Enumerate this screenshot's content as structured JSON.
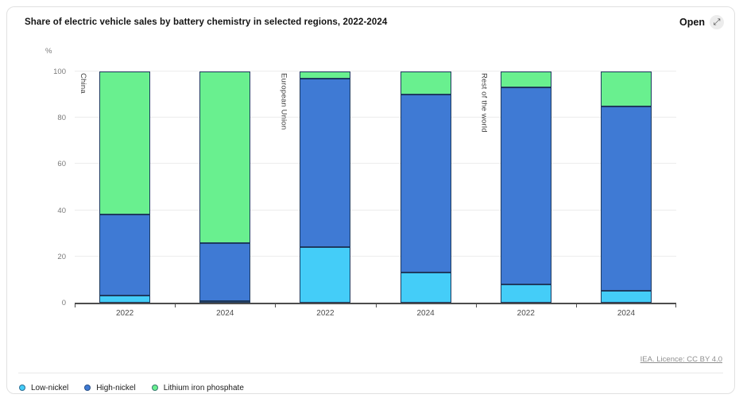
{
  "card": {
    "title": "Share of electric vehicle sales by battery chemistry in selected regions, 2022-2024",
    "open_button": {
      "label": "Open",
      "icon": "expand-diagonal-arrow"
    },
    "license_link": "IEA. Licence: CC BY 4.0"
  },
  "chart_data": {
    "type": "bar",
    "stacked": true,
    "title": "Share of electric vehicle sales by battery chemistry in selected regions, 2022-2024",
    "unit_label": "%",
    "ylim": [
      0,
      100
    ],
    "yticks": [
      0,
      20,
      40,
      60,
      80,
      100
    ],
    "grid": true,
    "legend_position": "bottom",
    "x_categories": [
      "2022",
      "2024",
      "2022",
      "2024",
      "2022",
      "2024"
    ],
    "region_labels": [
      {
        "name": "China",
        "start_index": 0,
        "span": 2
      },
      {
        "name": "European Union",
        "start_index": 2,
        "span": 2
      },
      {
        "name": "Rest of the world",
        "start_index": 4,
        "span": 2
      }
    ],
    "series": [
      {
        "name": "Low-nickel",
        "color": "#44cdf8",
        "values": [
          3,
          0.5,
          24,
          13,
          8,
          5
        ]
      },
      {
        "name": "High-nickel",
        "color": "#3f7ad4",
        "values": [
          35,
          25,
          73,
          77,
          85,
          80
        ]
      },
      {
        "name": "Lithium iron phosphate",
        "color": "#69f08f",
        "values": [
          62,
          74.5,
          3,
          10,
          7,
          15
        ]
      }
    ],
    "colors": {
      "bar_border": "#1e3a5f",
      "axis": "#4d4d4d",
      "gridline": "#ececec"
    }
  }
}
